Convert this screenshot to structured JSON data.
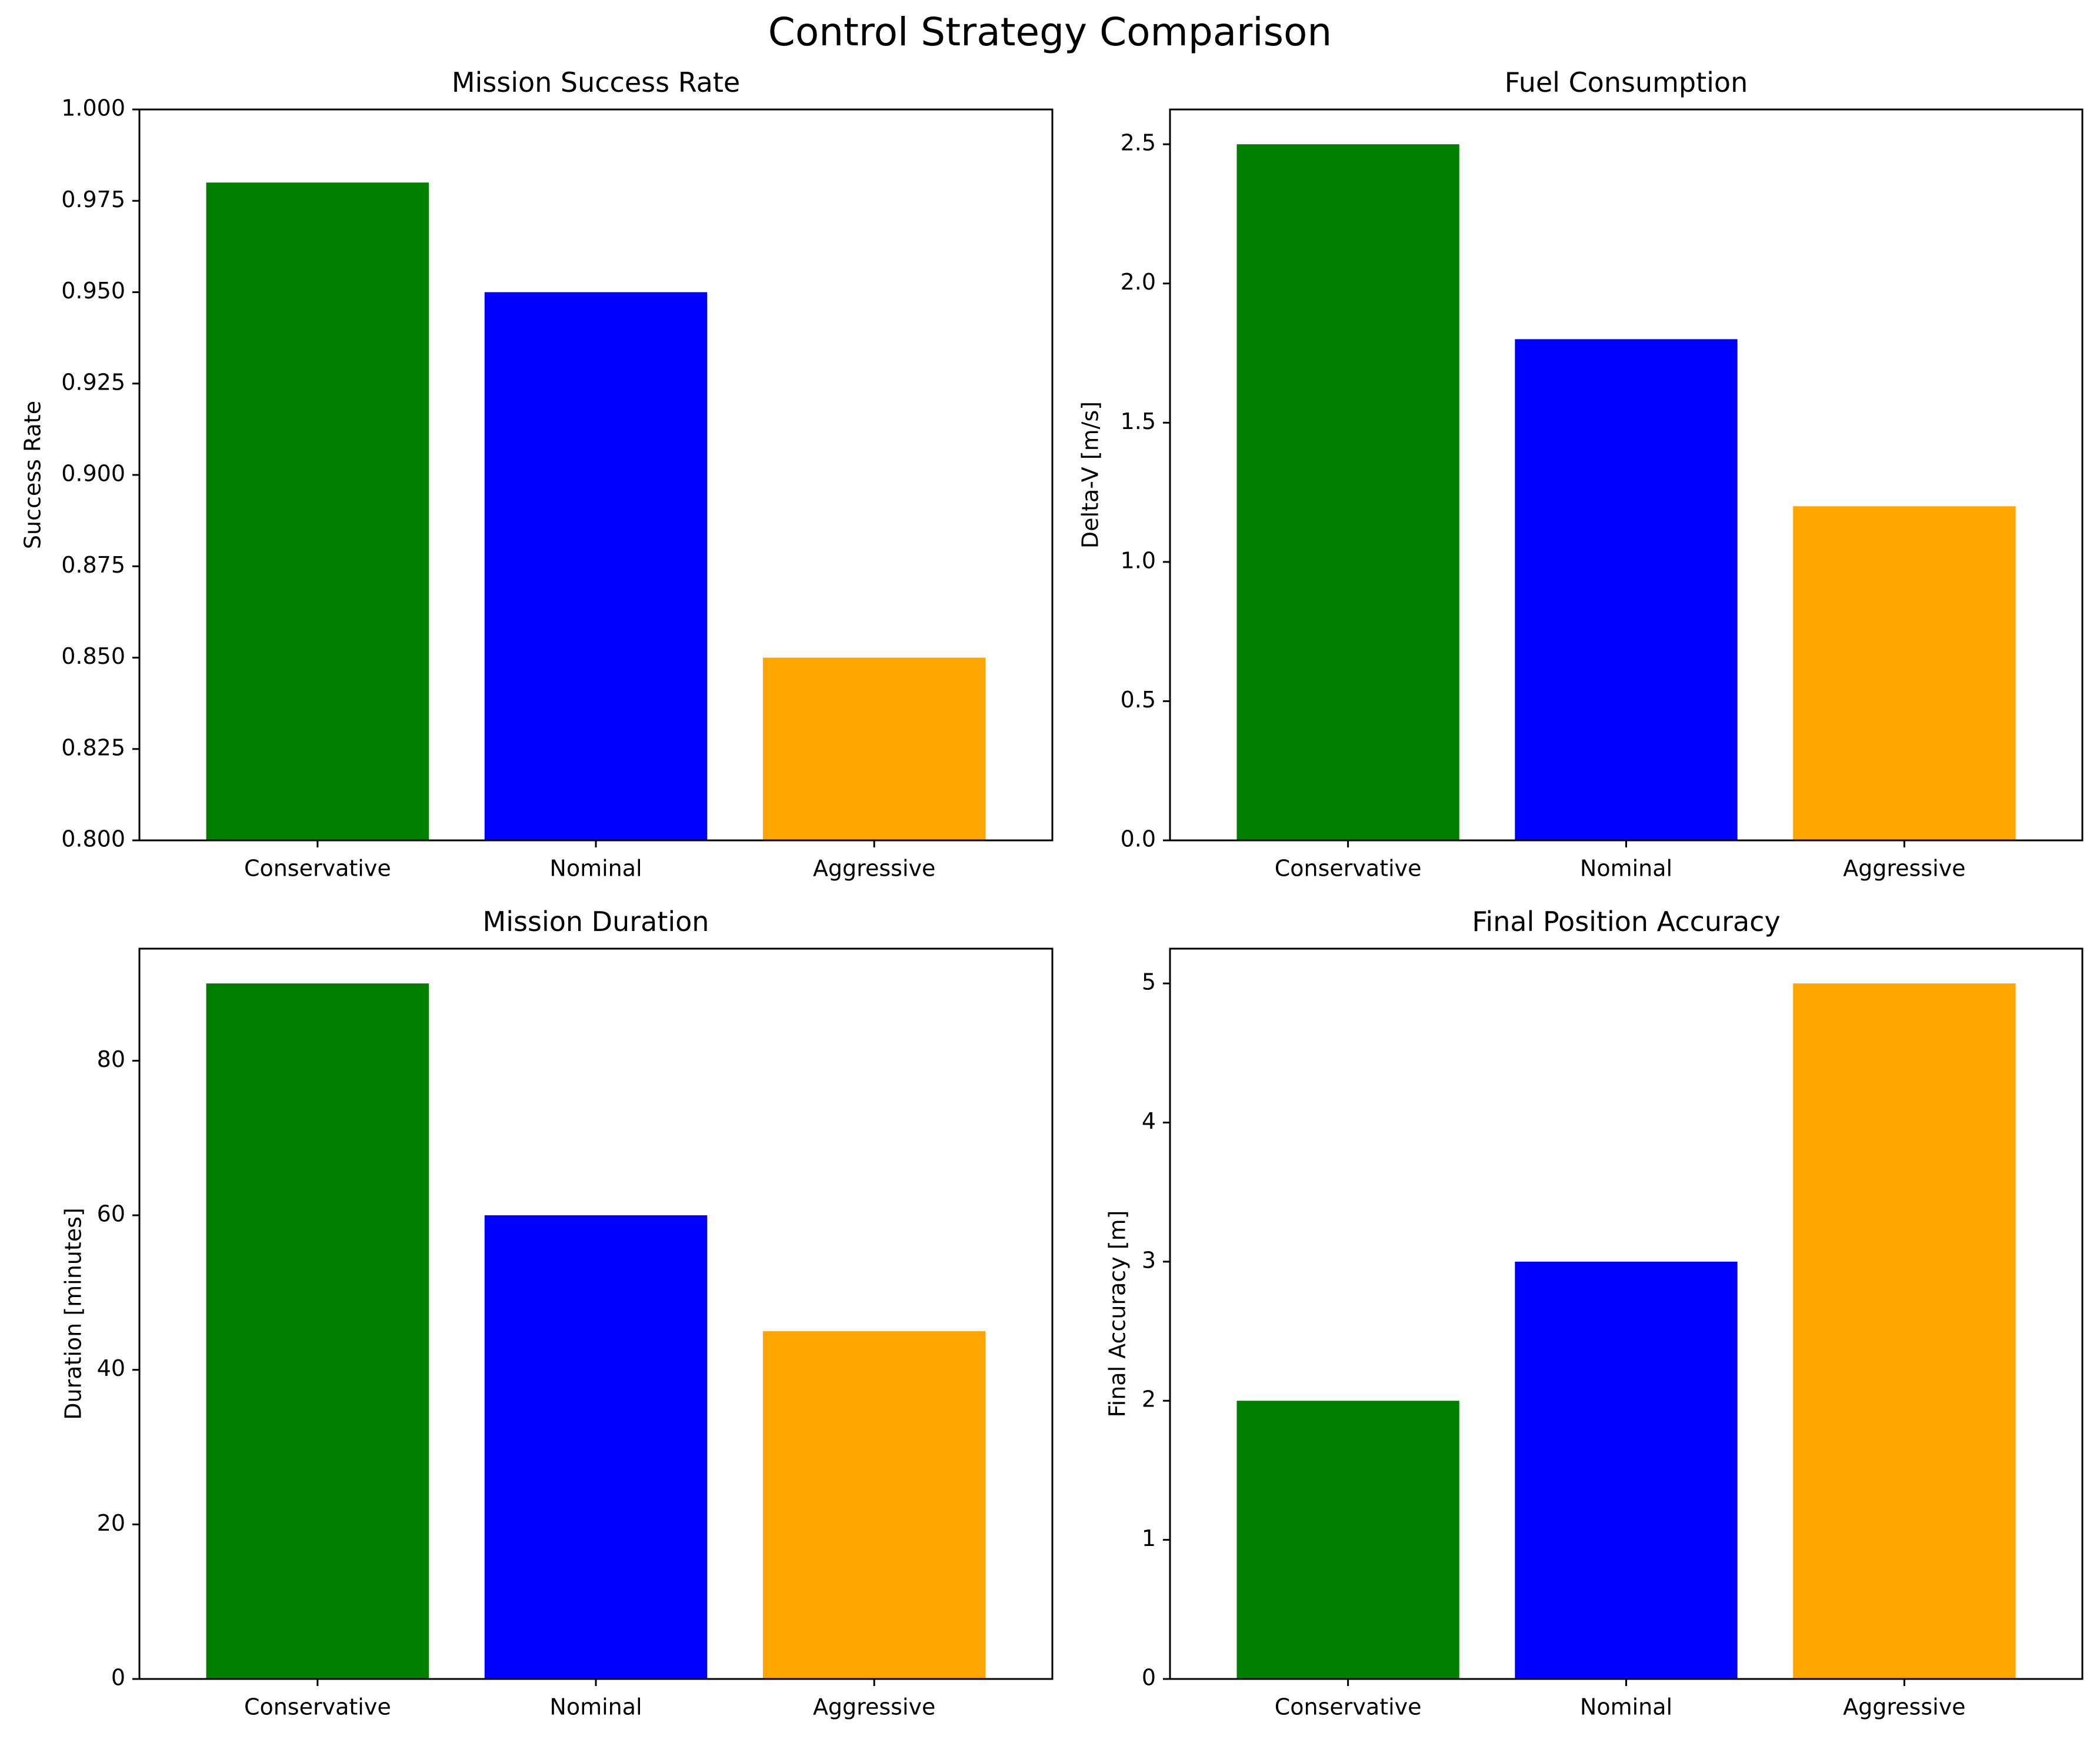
{
  "figure_title": "Control Strategy Comparison",
  "chart_data": [
    {
      "type": "bar",
      "title": "Mission Success Rate",
      "xlabel": "",
      "ylabel": "Success Rate",
      "categories": [
        "Conservative",
        "Nominal",
        "Aggressive"
      ],
      "values": [
        0.98,
        0.95,
        0.85
      ],
      "colors": [
        "#008000",
        "#0000ff",
        "#ffa500"
      ],
      "ylim": [
        0.8,
        1.0
      ],
      "yticks": [
        0.8,
        0.825,
        0.85,
        0.875,
        0.9,
        0.925,
        0.95,
        0.975,
        1.0
      ],
      "ytick_labels": [
        "0.800",
        "0.825",
        "0.850",
        "0.875",
        "0.900",
        "0.925",
        "0.950",
        "0.975",
        "1.000"
      ],
      "grid": false
    },
    {
      "type": "bar",
      "title": "Fuel Consumption",
      "xlabel": "",
      "ylabel": "Delta-V [m/s]",
      "categories": [
        "Conservative",
        "Nominal",
        "Aggressive"
      ],
      "values": [
        2.5,
        1.8,
        1.2
      ],
      "colors": [
        "#008000",
        "#0000ff",
        "#ffa500"
      ],
      "ylim": [
        0,
        2.625
      ],
      "yticks": [
        0,
        0.5,
        1.0,
        1.5,
        2.0,
        2.5
      ],
      "ytick_labels": [
        "0.0",
        "0.5",
        "1.0",
        "1.5",
        "2.0",
        "2.5"
      ],
      "grid": false
    },
    {
      "type": "bar",
      "title": "Mission Duration",
      "xlabel": "",
      "ylabel": "Duration [minutes]",
      "categories": [
        "Conservative",
        "Nominal",
        "Aggressive"
      ],
      "values": [
        90,
        60,
        45
      ],
      "colors": [
        "#008000",
        "#0000ff",
        "#ffa500"
      ],
      "ylim": [
        0,
        94.5
      ],
      "yticks": [
        0,
        20,
        40,
        60,
        80
      ],
      "ytick_labels": [
        "0",
        "20",
        "40",
        "60",
        "80"
      ],
      "grid": false
    },
    {
      "type": "bar",
      "title": "Final Position Accuracy",
      "xlabel": "",
      "ylabel": "Final Accuracy [m]",
      "categories": [
        "Conservative",
        "Nominal",
        "Aggressive"
      ],
      "values": [
        2,
        3,
        5
      ],
      "colors": [
        "#008000",
        "#0000ff",
        "#ffa500"
      ],
      "ylim": [
        0,
        5.25
      ],
      "yticks": [
        0,
        1,
        2,
        3,
        4,
        5
      ],
      "ytick_labels": [
        "0",
        "1",
        "2",
        "3",
        "4",
        "5"
      ],
      "grid": false
    }
  ]
}
